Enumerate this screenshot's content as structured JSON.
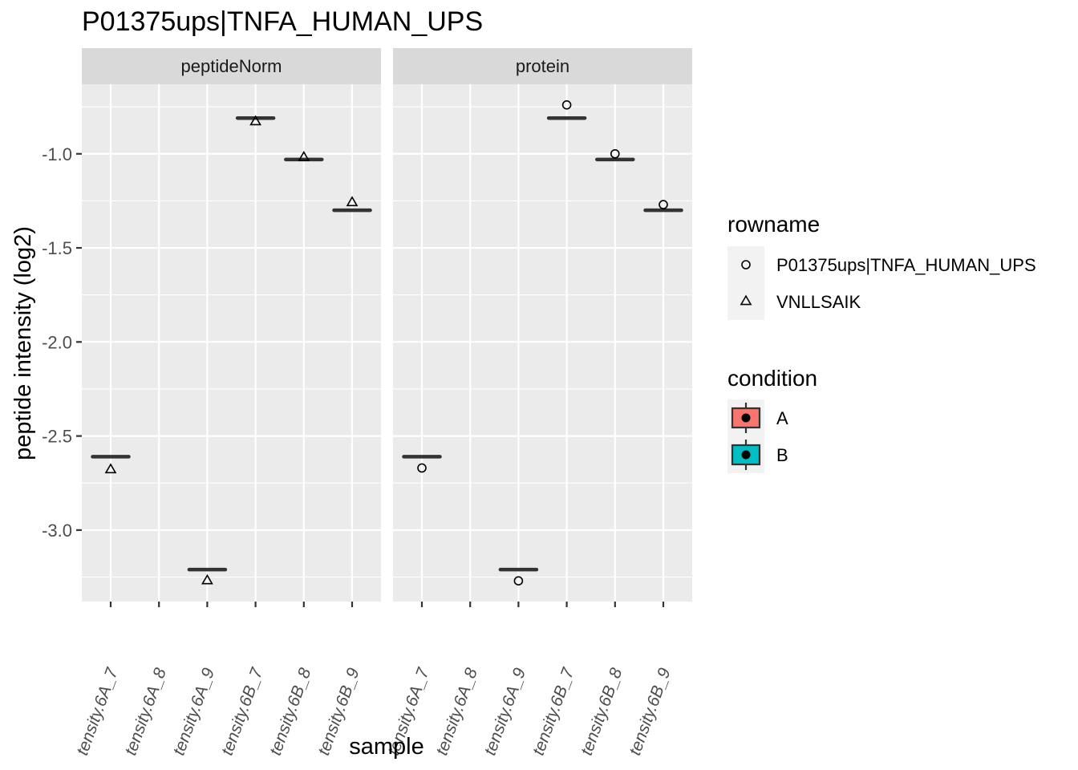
{
  "chart_data": {
    "type": "boxplot",
    "title": "P01375ups|TNFA_HUMAN_UPS",
    "xlabel": "sample",
    "ylabel": "peptide intensity (log2)",
    "ylim": [
      -3.38,
      -0.63
    ],
    "yticks": [
      "-1.0",
      "-1.5",
      "-2.0",
      "-2.5",
      "-3.0"
    ],
    "ytick_values": [
      -1.0,
      -1.5,
      -2.0,
      -2.5,
      -3.0
    ],
    "categories": [
      "tensity.6A_7",
      "tensity.6A_8",
      "tensity.6A_9",
      "tensity.6B_7",
      "tensity.6B_8",
      "tensity.6B_9"
    ],
    "panels": [
      {
        "name": "peptideNorm",
        "box_medians": [
          -2.61,
          null,
          -3.21,
          -0.81,
          -1.03,
          -1.3
        ],
        "box_conditions": [
          "A",
          null,
          "A",
          "B",
          "B",
          "B"
        ],
        "points": [
          {
            "sample": "tensity.6A_7",
            "value": -2.68,
            "rowname": "VNLLSAIK"
          },
          {
            "sample": "tensity.6A_9",
            "value": -3.27,
            "rowname": "VNLLSAIK"
          },
          {
            "sample": "tensity.6B_7",
            "value": -0.83,
            "rowname": "VNLLSAIK"
          },
          {
            "sample": "tensity.6B_8",
            "value": -1.02,
            "rowname": "VNLLSAIK"
          },
          {
            "sample": "tensity.6B_9",
            "value": -1.26,
            "rowname": "VNLLSAIK"
          }
        ]
      },
      {
        "name": "protein",
        "box_medians": [
          -2.61,
          null,
          -3.21,
          -0.81,
          -1.03,
          -1.3
        ],
        "box_conditions": [
          "A",
          null,
          "A",
          "B",
          "B",
          "B"
        ],
        "points": [
          {
            "sample": "tensity.6A_7",
            "value": -2.67,
            "rowname": "P01375ups|TNFA_HUMAN_UPS"
          },
          {
            "sample": "tensity.6A_9",
            "value": -3.27,
            "rowname": "P01375ups|TNFA_HUMAN_UPS"
          },
          {
            "sample": "tensity.6B_7",
            "value": -0.74,
            "rowname": "P01375ups|TNFA_HUMAN_UPS"
          },
          {
            "sample": "tensity.6B_8",
            "value": -1.0,
            "rowname": "P01375ups|TNFA_HUMAN_UPS"
          },
          {
            "sample": "tensity.6B_9",
            "value": -1.27,
            "rowname": "P01375ups|TNFA_HUMAN_UPS"
          }
        ]
      }
    ],
    "legends": [
      {
        "title": "rowname",
        "items": [
          {
            "label": "P01375ups|TNFA_HUMAN_UPS",
            "shape": "circle"
          },
          {
            "label": "VNLLSAIK",
            "shape": "triangle"
          }
        ]
      },
      {
        "title": "condition",
        "items": [
          {
            "label": "A",
            "color": "#f8766d"
          },
          {
            "label": "B",
            "color": "#00bfc4"
          }
        ]
      }
    ],
    "grid": true,
    "legend_position": "right",
    "colors": {
      "panel_bg": "#ebebeb",
      "strip_bg": "#d9d9d9",
      "gridline": "#ffffff",
      "box_line": "#333333"
    }
  }
}
